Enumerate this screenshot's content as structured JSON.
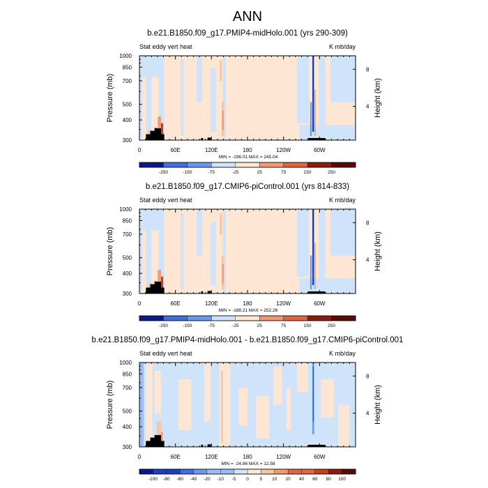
{
  "figure_title": "ANN",
  "colors": {
    "blues": [
      "#0a1a8a",
      "#1e3fc4",
      "#3f6fe0",
      "#6a98ee",
      "#99bdf6",
      "#cfe4fb"
    ],
    "reds": [
      "#fde6d4",
      "#f7c6a7",
      "#ef9a72",
      "#e0663d",
      "#c2401e",
      "#8c1c0b",
      "#5a0a05"
    ],
    "zero": "#ffffff",
    "topo": "#000000"
  },
  "chart_data": [
    {
      "type": "heatmap",
      "title": "b.e21.B1850.f09_g17.PMIP4-midHolo.001 (yrs 290-309)",
      "left_label": "Stat eddy vert heat",
      "right_label": "K mb/day",
      "ylabel": "Pressure (mb)",
      "ylabel_right": "Height (km)",
      "ylim": [
        1000,
        300
      ],
      "yticks": [
        "300",
        "400",
        "500",
        "700",
        "850",
        "1000"
      ],
      "yticks_right": [
        "8",
        "4"
      ],
      "xticks": [
        "0",
        "60E",
        "120E",
        "180",
        "120W",
        "60W"
      ],
      "minmax_label": "MIN = -196.01   MAX = 245.04",
      "colorbar_labels": [
        "-250",
        "-150",
        "-75",
        "-25",
        "25",
        "75",
        "150",
        "250"
      ],
      "scale": 1.0
    },
    {
      "type": "heatmap",
      "title": "b.e21.B1850.f09_g17.CMIP6-piControl.001 (yrs 814-833)",
      "left_label": "Stat eddy vert heat",
      "right_label": "K mb/day",
      "ylabel": "Pressure (mb)",
      "ylabel_right": "Height (km)",
      "ylim": [
        1000,
        300
      ],
      "yticks": [
        "300",
        "400",
        "500",
        "700",
        "850",
        "1000"
      ],
      "yticks_right": [
        "8",
        "4"
      ],
      "xticks": [
        "0",
        "60E",
        "120E",
        "180",
        "120W",
        "60W"
      ],
      "minmax_label": "MIN = -188.21   MAX = 252.26",
      "colorbar_labels": [
        "-250",
        "-150",
        "-75",
        "-25",
        "25",
        "75",
        "150",
        "250"
      ],
      "scale": 1.0
    },
    {
      "type": "heatmap",
      "title": "b.e21.B1850.f09_g17.PMIP4-midHolo.001 - b.e21.B1850.f09_g17.CMIP6-piControl.001",
      "left_label": "Stat eddy vert heat",
      "right_label": "K mb/day",
      "ylabel": "Pressure (mb)",
      "ylabel_right": "Height (km)",
      "ylim": [
        1000,
        300
      ],
      "yticks": [
        "300",
        "400",
        "500",
        "700",
        "850",
        "1000"
      ],
      "yticks_right": [
        "8",
        "4"
      ],
      "xticks": [
        "0",
        "60E",
        "120E",
        "180",
        "120W",
        "60W"
      ],
      "minmax_label": "MIN = -24.86   MAX = 12.58",
      "colorbar_labels": [
        "-100",
        "-80",
        "-60",
        "-40",
        "-20",
        "-10",
        "-5",
        "0",
        "5",
        "10",
        "20",
        "40",
        "60",
        "80",
        "100"
      ],
      "scale": 0.1
    }
  ]
}
